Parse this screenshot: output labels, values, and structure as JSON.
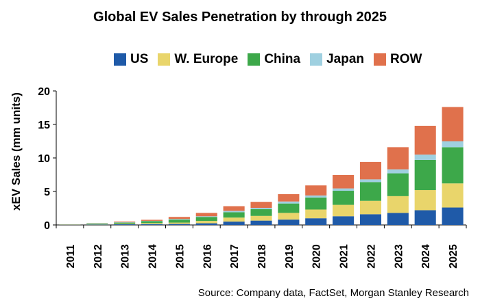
{
  "chart_data": {
    "type": "bar",
    "stacked": true,
    "title": "Global EV Sales Penetration by through 2025",
    "xlabel": "",
    "ylabel": "xEV Sales (mm units)",
    "ylim": [
      0,
      20
    ],
    "yticks": [
      0,
      5,
      10,
      15,
      20
    ],
    "categories": [
      "2011",
      "2012",
      "2013",
      "2014",
      "2015",
      "2016",
      "2017",
      "2018",
      "2019",
      "2020",
      "2021",
      "2022",
      "2023",
      "2024",
      "2025"
    ],
    "series": [
      {
        "name": "US",
        "color": "#1f5aa8",
        "values": [
          0.02,
          0.05,
          0.1,
          0.12,
          0.15,
          0.25,
          0.5,
          0.65,
          0.8,
          1.0,
          1.3,
          1.6,
          1.8,
          2.2,
          2.6
        ]
      },
      {
        "name": "W. Europe",
        "color": "#e9d56b",
        "values": [
          0.02,
          0.04,
          0.1,
          0.15,
          0.2,
          0.35,
          0.6,
          0.7,
          1.0,
          1.3,
          1.7,
          2.0,
          2.5,
          3.0,
          3.6
        ]
      },
      {
        "name": "China",
        "color": "#3da84a",
        "values": [
          0.02,
          0.12,
          0.15,
          0.3,
          0.45,
          0.6,
          0.8,
          1.0,
          1.4,
          1.8,
          2.1,
          2.8,
          3.4,
          4.5,
          5.4
        ]
      },
      {
        "name": "Japan",
        "color": "#9fd0e0",
        "values": [
          0.01,
          0.03,
          0.05,
          0.05,
          0.1,
          0.1,
          0.2,
          0.2,
          0.3,
          0.3,
          0.35,
          0.4,
          0.6,
          0.8,
          0.9
        ]
      },
      {
        "name": "ROW",
        "color": "#e0714c",
        "values": [
          0.01,
          0.02,
          0.1,
          0.15,
          0.3,
          0.5,
          0.7,
          0.9,
          1.1,
          1.5,
          2.0,
          2.6,
          3.3,
          4.3,
          5.1
        ]
      }
    ],
    "grid": false,
    "legend_position": "top"
  },
  "source_text": "Source: Company data, FactSet, Morgan Stanley Research"
}
